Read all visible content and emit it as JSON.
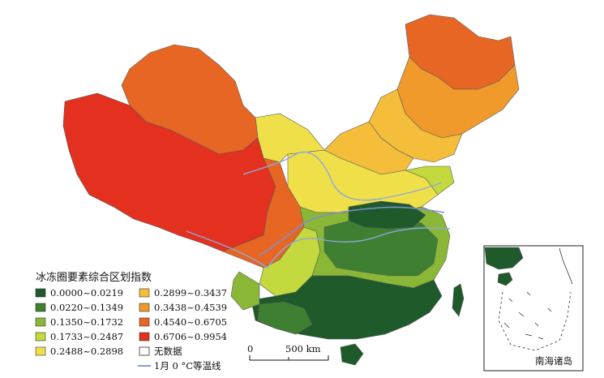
{
  "legend": {
    "title": "冰冻圈要素综合区划指数",
    "classes": [
      {
        "label": "0.0000~0.0219",
        "color": "#1e5a2a"
      },
      {
        "label": "0.0220~0.1349",
        "color": "#3f7f32"
      },
      {
        "label": "0.1350~0.1732",
        "color": "#8ab836"
      },
      {
        "label": "0.1733~0.2487",
        "color": "#c3d93e"
      },
      {
        "label": "0.2488~0.2898",
        "color": "#efe04a"
      },
      {
        "label": "0.2899~0.3437",
        "color": "#f4bd3a"
      },
      {
        "label": "0.3438~0.4539",
        "color": "#f09a2c"
      },
      {
        "label": "0.4540~0.6705",
        "color": "#e86623"
      },
      {
        "label": "0.6706~0.9954",
        "color": "#e3301f"
      }
    ],
    "no_data_label": "无数据",
    "isotherm_label": "1月 0 °C等温线"
  },
  "scale_bar": {
    "zero_label": "0",
    "end_label": "500 km"
  },
  "inset": {
    "label": "南海诸岛"
  }
}
